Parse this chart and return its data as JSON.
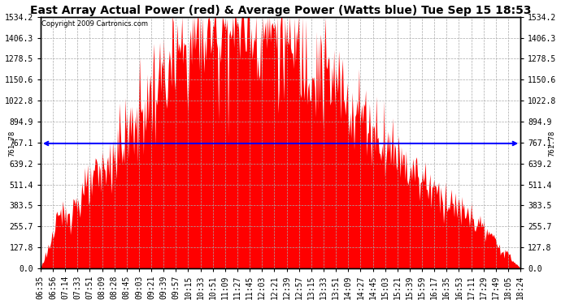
{
  "title": "East Array Actual Power (red) & Average Power (Watts blue) Tue Sep 15 18:53",
  "copyright": "Copyright 2009 Cartronics.com",
  "avg_power": 761.78,
  "y_max": 1534.2,
  "y_min": 0.0,
  "y_ticks": [
    0.0,
    127.8,
    255.7,
    383.5,
    511.4,
    639.2,
    767.1,
    894.9,
    1022.8,
    1150.6,
    1278.5,
    1406.3,
    1534.2
  ],
  "x_labels": [
    "06:35",
    "06:56",
    "07:14",
    "07:33",
    "07:51",
    "08:09",
    "08:28",
    "08:45",
    "09:03",
    "09:21",
    "09:39",
    "09:57",
    "10:15",
    "10:33",
    "10:51",
    "11:09",
    "11:27",
    "11:45",
    "12:03",
    "12:21",
    "12:39",
    "12:57",
    "13:15",
    "13:33",
    "13:51",
    "14:09",
    "14:27",
    "14:45",
    "15:03",
    "15:21",
    "15:39",
    "15:59",
    "16:17",
    "16:35",
    "16:53",
    "17:11",
    "17:29",
    "17:49",
    "18:05",
    "18:24"
  ],
  "bg_color": "#ffffff",
  "fill_color": "#ff0000",
  "line_color": "#0000ff",
  "grid_color": "#aaaaaa",
  "title_fontsize": 10,
  "tick_fontsize": 7
}
